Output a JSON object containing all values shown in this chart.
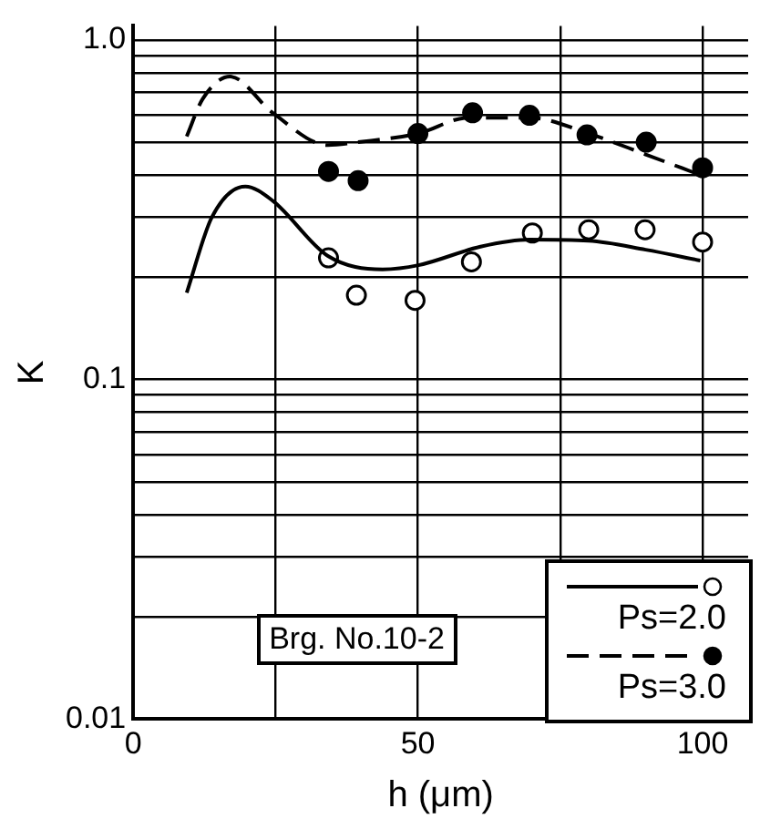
{
  "chart_data": {
    "type": "line",
    "xlabel": "h (μm)",
    "ylabel": "K",
    "annotations": [
      "Brg. No.10-2"
    ],
    "xlim": [
      0,
      108
    ],
    "xticks": [
      0,
      {
        "value": 25,
        "label": null
      },
      50,
      {
        "value": 75,
        "label": null
      },
      100
    ],
    "ylim": [
      0.01,
      1.1
    ],
    "yticks": [
      0.01,
      {
        "value": 0.02,
        "label": null
      },
      {
        "value": 0.03,
        "label": null
      },
      {
        "value": 0.04,
        "label": null
      },
      {
        "value": 0.05,
        "label": null
      },
      {
        "value": 0.06,
        "label": null
      },
      {
        "value": 0.07,
        "label": null
      },
      {
        "value": 0.08,
        "label": null
      },
      {
        "value": 0.09,
        "label": null
      },
      0.1,
      {
        "value": 0.2,
        "label": null
      },
      {
        "value": 0.3,
        "label": null
      },
      {
        "value": 0.4,
        "label": null
      },
      {
        "value": 0.5,
        "label": null
      },
      {
        "value": 0.6,
        "label": null
      },
      {
        "value": 0.7,
        "label": null
      },
      {
        "value": 0.8,
        "label": null
      },
      {
        "value": 0.9,
        "label": null
      },
      {
        "value": 1,
        "label": "1.0"
      }
    ],
    "log": "y",
    "grid": true,
    "legend": "bottom right",
    "series": [
      {
        "name": "Ps=2.0",
        "color": "#000000",
        "line_style": "solid",
        "marker": "none",
        "x": [
          9.4,
          13.8,
          19.7,
          24.5,
          34.2,
          43.8,
          50.1,
          61,
          69.6,
          80,
          90,
          99.6
        ],
        "values": [
          0.18,
          0.3,
          0.37,
          0.336,
          0.231,
          0.211,
          0.217,
          0.246,
          0.258,
          0.256,
          0.241,
          0.224
        ]
      },
      {
        "type": "scatter",
        "color": "#ffffff",
        "marker": "circle",
        "x": [
          34.3,
          39.2,
          49.5,
          59.4,
          70.1,
          80,
          89.9,
          100
        ],
        "values": [
          0.228,
          0.177,
          0.171,
          0.222,
          0.27,
          0.276,
          0.276,
          0.254
        ]
      },
      {
        "name": "Ps=3.0",
        "color": "#000000",
        "line_style": "dashed",
        "marker": "none",
        "x": [
          9.4,
          12.2,
          17,
          24.5,
          34.2,
          39.5,
          50,
          58.8,
          69.6,
          80,
          90,
          99.6
        ],
        "values": [
          0.52,
          0.67,
          0.78,
          0.61,
          0.49,
          0.5,
          0.53,
          0.59,
          0.59,
          0.53,
          0.46,
          0.4
        ]
      },
      {
        "type": "scatter",
        "color": "#000000",
        "marker": "circle",
        "x": [
          34.3,
          39.5,
          50,
          59.6,
          69.6,
          79.7,
          90.1,
          100
        ],
        "values": [
          0.41,
          0.385,
          0.53,
          0.61,
          0.6,
          0.525,
          0.5,
          0.42
        ]
      }
    ]
  }
}
